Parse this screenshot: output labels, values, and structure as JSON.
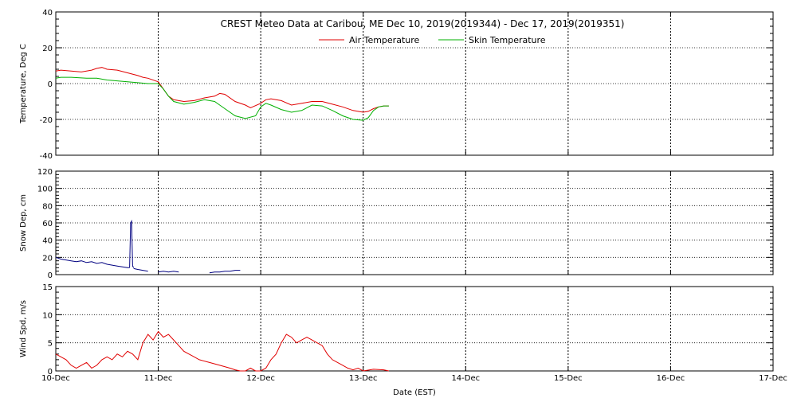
{
  "chart_data": [
    {
      "type": "line",
      "title": "CREST Meteo Data at Caribou, ME   Dec 10, 2019(2019344) - Dec 17, 2019(2019351)",
      "ylabel": "Temperature, Deg C",
      "ylim": [
        -40,
        40
      ],
      "yticks": [
        "40",
        "20",
        "0",
        "-20",
        "-40"
      ],
      "xlim": [
        0,
        7
      ],
      "legend_position": "top-center",
      "series": [
        {
          "name": "Air Temperature",
          "color": "#e00000",
          "x": [
            0,
            0.05,
            0.15,
            0.25,
            0.35,
            0.4,
            0.45,
            0.5,
            0.6,
            0.7,
            0.8,
            0.85,
            0.9,
            1.0,
            1.05,
            1.1,
            1.15,
            1.25,
            1.35,
            1.45,
            1.55,
            1.6,
            1.65,
            1.75,
            1.85,
            1.9,
            2.0,
            2.05,
            2.1,
            2.2,
            2.3,
            2.4,
            2.5,
            2.6,
            2.7,
            2.8,
            2.9,
            3.0,
            3.05,
            3.1,
            3.15,
            3.2,
            3.25
          ],
          "y": [
            7,
            7.5,
            7,
            6.5,
            7.5,
            8.5,
            9,
            8,
            7.5,
            6,
            4.5,
            3.5,
            3,
            1,
            -3,
            -7,
            -9,
            -10,
            -9.5,
            -8,
            -7,
            -5.5,
            -6,
            -10,
            -12,
            -13.5,
            -11,
            -9,
            -8.5,
            -9.5,
            -12,
            -11,
            -10,
            -10,
            -11.5,
            -13,
            -15,
            -16,
            -15.5,
            -14,
            -13,
            -12.5,
            -12.5
          ]
        },
        {
          "name": "Skin Temperature",
          "color": "#00b000",
          "x": [
            0,
            0.05,
            0.15,
            0.3,
            0.4,
            0.5,
            0.6,
            0.7,
            0.8,
            0.9,
            1.0,
            1.05,
            1.1,
            1.15,
            1.25,
            1.35,
            1.45,
            1.55,
            1.6,
            1.65,
            1.75,
            1.85,
            1.95,
            2.0,
            2.05,
            2.1,
            2.2,
            2.3,
            2.4,
            2.5,
            2.6,
            2.7,
            2.8,
            2.9,
            3.0,
            3.05,
            3.1,
            3.15,
            3.2,
            3.25
          ],
          "y": [
            3,
            3.5,
            3.5,
            3,
            3,
            2,
            1.5,
            1,
            0.5,
            0,
            0,
            -3,
            -7,
            -10,
            -11.5,
            -10.5,
            -9,
            -10,
            -12,
            -14,
            -18,
            -19.5,
            -18,
            -13,
            -11,
            -12,
            -14.5,
            -16,
            -15,
            -12,
            -12.5,
            -15,
            -18,
            -20,
            -20.5,
            -19,
            -15,
            -13,
            -12.5,
            -12.5
          ]
        }
      ]
    },
    {
      "type": "line",
      "ylabel": "Snow Dep, cm",
      "ylim": [
        0,
        120
      ],
      "yticks": [
        "120",
        "100",
        "80",
        "60",
        "40",
        "20",
        "0"
      ],
      "xlim": [
        0,
        7
      ],
      "series": [
        {
          "color": "#000080",
          "segments": [
            {
              "x": [
                0,
                0.05,
                0.1,
                0.15,
                0.2,
                0.25,
                0.3,
                0.35,
                0.4,
                0.45,
                0.5,
                0.55,
                0.6,
                0.65,
                0.7,
                0.72
              ],
              "y": [
                20,
                18,
                17,
                16,
                15,
                16,
                14,
                15,
                13,
                14,
                12,
                11,
                10,
                9,
                8,
                8
              ]
            },
            {
              "x": [
                0.72,
                0.73,
                0.74,
                0.75,
                0.76
              ],
              "y": [
                8,
                60,
                62,
                10,
                8
              ]
            },
            {
              "x": [
                0.76,
                0.8,
                0.85,
                0.9
              ],
              "y": [
                7,
                6,
                5,
                4
              ]
            },
            {
              "x": [
                1.0,
                1.05,
                1.1,
                1.15,
                1.2
              ],
              "y": [
                3,
                4,
                3,
                4,
                3
              ]
            },
            {
              "x": [
                1.5,
                1.55,
                1.6,
                1.65,
                1.7,
                1.75,
                1.8
              ],
              "y": [
                2,
                3,
                3,
                4,
                4,
                5,
                5
              ]
            }
          ]
        }
      ]
    },
    {
      "type": "line",
      "ylabel": "Wind Spd, m/s",
      "xlabel": "Date (EST)",
      "ylim": [
        0,
        15
      ],
      "yticks": [
        "15",
        "10",
        "5",
        "0"
      ],
      "xlim": [
        0,
        7
      ],
      "xticks": [
        "10-Dec",
        "11-Dec",
        "12-Dec",
        "13-Dec",
        "14-Dec",
        "15-Dec",
        "16-Dec",
        "17-Dec"
      ],
      "series": [
        {
          "color": "#e00000",
          "x": [
            0,
            0.05,
            0.1,
            0.15,
            0.2,
            0.25,
            0.3,
            0.35,
            0.4,
            0.45,
            0.5,
            0.55,
            0.6,
            0.65,
            0.7,
            0.75,
            0.8,
            0.85,
            0.9,
            0.95,
            1.0,
            1.05,
            1.1,
            1.15,
            1.2,
            1.25,
            1.3,
            1.35,
            1.4,
            1.5,
            1.6,
            1.7,
            1.75,
            1.8,
            1.85,
            1.9,
            1.95,
            2.0,
            2.05,
            2.1,
            2.15,
            2.2,
            2.25,
            2.3,
            2.35,
            2.4,
            2.45,
            2.5,
            2.55,
            2.6,
            2.65,
            2.7,
            2.75,
            2.8,
            2.85,
            2.9,
            2.95,
            3.0,
            3.1,
            3.2,
            3.25
          ],
          "y": [
            3,
            2.5,
            2,
            1,
            0.5,
            1,
            1.5,
            0.5,
            1,
            2,
            2.5,
            2,
            3,
            2.5,
            3.5,
            3,
            2,
            5,
            6.5,
            5.5,
            7,
            6,
            6.5,
            5.5,
            4.5,
            3.5,
            3,
            2.5,
            2,
            1.5,
            1,
            0.5,
            0.2,
            0,
            0,
            0.5,
            0,
            0,
            0.5,
            2,
            3,
            5,
            6.5,
            6,
            5,
            5.5,
            6,
            5.5,
            5,
            4.5,
            3,
            2,
            1.5,
            1,
            0.5,
            0.2,
            0.5,
            0,
            0.3,
            0.2,
            0
          ]
        }
      ]
    }
  ]
}
